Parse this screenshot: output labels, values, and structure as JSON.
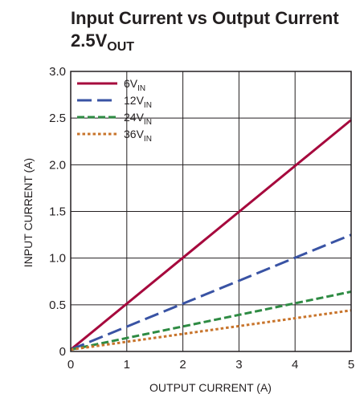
{
  "chart_data": {
    "type": "line",
    "title": "Input Current vs Output Current",
    "subtitle": {
      "main": "2.5V",
      "sub": "OUT"
    },
    "xlabel": "OUTPUT CURRENT (A)",
    "ylabel": "INPUT CURRENT (A)",
    "xlim": [
      0,
      5
    ],
    "ylim": [
      0,
      3
    ],
    "xticks": [
      0,
      1,
      2,
      3,
      4,
      5
    ],
    "xtick_labels": [
      "0",
      "1",
      "2",
      "3",
      "4",
      "5"
    ],
    "yticks": [
      0,
      0.5,
      1.0,
      1.5,
      2.0,
      2.5,
      3.0
    ],
    "ytick_labels": [
      "0",
      "0.5",
      "1.0",
      "1.5",
      "2.0",
      "2.5",
      "3.0"
    ],
    "grid": true,
    "legend_position": "top-left",
    "series": [
      {
        "label_main": "6V",
        "label_sub": "IN",
        "color": "#a6093d",
        "style": "solid",
        "x": [
          0,
          5
        ],
        "y": [
          0.02,
          2.48
        ]
      },
      {
        "label_main": "12V",
        "label_sub": "IN",
        "color": "#3953a4",
        "style": "dashed",
        "x": [
          0,
          5
        ],
        "y": [
          0.02,
          1.25
        ]
      },
      {
        "label_main": "24V",
        "label_sub": "IN",
        "color": "#2e8b43",
        "style": "dashed-short",
        "x": [
          0,
          5
        ],
        "y": [
          0.02,
          0.64
        ]
      },
      {
        "label_main": "36V",
        "label_sub": "IN",
        "color": "#c8742b",
        "style": "dotted",
        "x": [
          0,
          5
        ],
        "y": [
          0.02,
          0.44
        ]
      }
    ]
  }
}
